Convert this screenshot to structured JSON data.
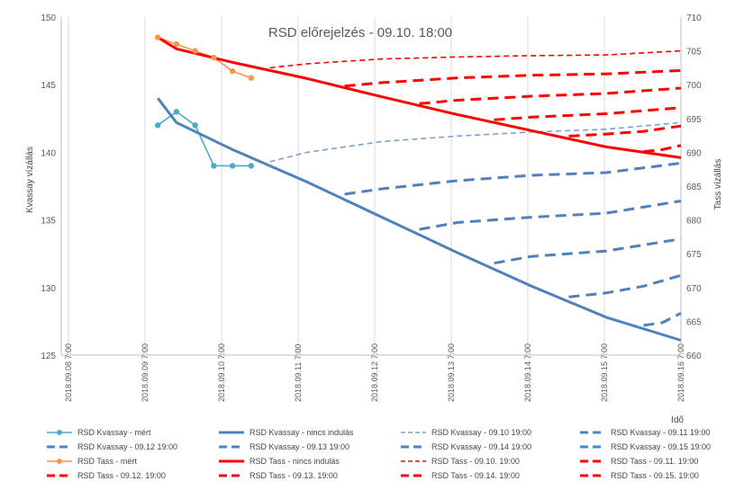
{
  "colors": {
    "kvassay": "#4f81bd",
    "kvassay_dashed_light": "#7aa0cf",
    "kvassay_measured": "#4bacc6",
    "tass": "#ff0000",
    "tass_measured": "#f79646",
    "grid": "#d9d9d9"
  },
  "chart_data": {
    "type": "line",
    "title": "RSD előrejelzés - 09.10. 18:00",
    "ylabel": "Kvassay vízállás",
    "y2label": "Tass vízállás",
    "xlabel": "Idő",
    "ylim": [
      125,
      150
    ],
    "y2lim": [
      660,
      710
    ],
    "yticks": [
      125,
      130,
      135,
      140,
      145,
      150
    ],
    "y2ticks": [
      660,
      665,
      670,
      675,
      680,
      685,
      690,
      695,
      700,
      705,
      710
    ],
    "xlim": [
      "2018-09-08T00:00",
      "2018-09-16T07:00"
    ],
    "x_tick_labels": [
      "2018.09.08 7:00",
      "2018.09.09 7:00",
      "2018.09.10 7:00",
      "2018.09.11 7:00",
      "2018.09.12 7:00",
      "2018.09.13 7:00",
      "2018.09.14 7:00",
      "2018.09.15 7:00",
      "2018.09.16 7:00"
    ],
    "grid": "vertical",
    "legend_position": "bottom",
    "series": [
      {
        "name": "RSD Kvassay - mért",
        "axis": "left",
        "style": "line-marker",
        "color": "#4bacc6",
        "x": [
          "2018-09-09T07:00",
          "2018-09-09T13:00",
          "2018-09-09T19:00",
          "2018-09-10T01:00",
          "2018-09-10T07:00",
          "2018-09-10T13:00"
        ],
        "y": [
          142,
          143,
          142,
          139,
          139,
          139
        ]
      },
      {
        "name": "RSD Kvassay - nincs indulás",
        "axis": "left",
        "style": "solid-thick",
        "color": "#4f81bd",
        "x": [
          "2018-09-09T07:00",
          "2018-09-09T13:00",
          "2018-09-10T07:00",
          "2018-09-11T07:00",
          "2018-09-12T07:00",
          "2018-09-13T07:00",
          "2018-09-14T07:00",
          "2018-09-15T07:00",
          "2018-09-16T07:00"
        ],
        "y": [
          144,
          142.2,
          140.2,
          137.8,
          135.2,
          132.6,
          130.1,
          127.8,
          126.1
        ]
      },
      {
        "name": "RSD Kvassay - 09.10 19:00",
        "axis": "left",
        "style": "dash-thin",
        "color": "#7aa0cf",
        "x": [
          "2018-09-10T19:00",
          "2018-09-11T07:00",
          "2018-09-12T07:00",
          "2018-09-13T07:00",
          "2018-09-14T07:00",
          "2018-09-15T07:00",
          "2018-09-16T07:00"
        ],
        "y": [
          139.3,
          140,
          140.8,
          141.2,
          141.5,
          141.7,
          142.2
        ]
      },
      {
        "name": "RSD Kvassay - 09.11 19:00",
        "axis": "left",
        "style": "dash-thick",
        "color": "#4f81bd",
        "x": [
          "2018-09-11T19:00",
          "2018-09-12T07:00",
          "2018-09-13T07:00",
          "2018-09-14T07:00",
          "2018-09-15T07:00",
          "2018-09-16T07:00"
        ],
        "y": [
          136.9,
          137.3,
          137.9,
          138.3,
          138.5,
          139.2
        ]
      },
      {
        "name": "RSD Kvassay - 09.12 19:00",
        "axis": "left",
        "style": "dash-thick",
        "color": "#4f81bd",
        "x": [
          "2018-09-12T19:00",
          "2018-09-13T07:00",
          "2018-09-14T07:00",
          "2018-09-15T07:00",
          "2018-09-16T07:00"
        ],
        "y": [
          134.3,
          134.8,
          135.2,
          135.5,
          136.4
        ]
      },
      {
        "name": "RSD Kvassay - 09.13 19:00",
        "axis": "left",
        "style": "dash-thick",
        "color": "#4f81bd",
        "x": [
          "2018-09-13T19:00",
          "2018-09-14T07:00",
          "2018-09-15T07:00",
          "2018-09-16T07:00"
        ],
        "y": [
          131.8,
          132.3,
          132.7,
          133.6
        ]
      },
      {
        "name": "RSD Kvassay - 09.14 19:00",
        "axis": "left",
        "style": "dash-thick",
        "color": "#4f81bd",
        "x": [
          "2018-09-14T19:00",
          "2018-09-15T07:00",
          "2018-09-15T19:00",
          "2018-09-16T07:00"
        ],
        "y": [
          129.3,
          129.6,
          130.1,
          130.9
        ]
      },
      {
        "name": "RSD Kvassay - 09.15 19:00",
        "axis": "left",
        "style": "dash-thick",
        "color": "#4f81bd",
        "x": [
          "2018-09-15T19:00",
          "2018-09-16T01:00",
          "2018-09-16T07:00"
        ],
        "y": [
          127.2,
          127.4,
          128.1
        ]
      },
      {
        "name": "RSD Tass - mért",
        "axis": "right",
        "style": "line-marker",
        "color": "#f79646",
        "x": [
          "2018-09-09T07:00",
          "2018-09-09T13:00",
          "2018-09-09T19:00",
          "2018-09-10T01:00",
          "2018-09-10T07:00",
          "2018-09-10T13:00"
        ],
        "y": [
          707,
          706,
          705,
          704,
          702,
          701
        ]
      },
      {
        "name": "RSD Tass - nincs indulás",
        "axis": "right",
        "style": "solid-thick",
        "color": "#ff0000",
        "x": [
          "2018-09-09T07:00",
          "2018-09-09T13:00",
          "2018-09-10T07:00",
          "2018-09-11T07:00",
          "2018-09-12T07:00",
          "2018-09-13T07:00",
          "2018-09-14T07:00",
          "2018-09-15T07:00",
          "2018-09-16T07:00"
        ],
        "y": [
          707,
          705.3,
          703.3,
          700.9,
          698.2,
          695.6,
          693.2,
          690.8,
          689.2
        ]
      },
      {
        "name": "RSD Tass - 09.10. 19:00",
        "axis": "right",
        "style": "dash-thin",
        "color": "#ff0000",
        "x": [
          "2018-09-10T19:00",
          "2018-09-11T07:00",
          "2018-09-12T07:00",
          "2018-09-13T07:00",
          "2018-09-14T07:00",
          "2018-09-15T07:00",
          "2018-09-16T07:00"
        ],
        "y": [
          702.5,
          703.1,
          703.8,
          704.1,
          704.3,
          704.4,
          705
        ]
      },
      {
        "name": "RSD Tass - 09.11. 19:00",
        "axis": "right",
        "style": "dash-thick",
        "color": "#ff0000",
        "x": [
          "2018-09-11T19:00",
          "2018-09-12T07:00",
          "2018-09-13T07:00",
          "2018-09-14T07:00",
          "2018-09-15T07:00",
          "2018-09-16T07:00"
        ],
        "y": [
          699.8,
          700.3,
          701,
          701.4,
          701.6,
          702.1
        ]
      },
      {
        "name": "RSD Tass - 09.12. 19:00",
        "axis": "right",
        "style": "dash-thick",
        "color": "#ff0000",
        "x": [
          "2018-09-12T19:00",
          "2018-09-13T07:00",
          "2018-09-14T07:00",
          "2018-09-15T07:00",
          "2018-09-16T07:00"
        ],
        "y": [
          697.2,
          697.7,
          698.3,
          698.7,
          699.5
        ]
      },
      {
        "name": "RSD Tass - 09.13. 19:00",
        "axis": "right",
        "style": "dash-thick",
        "color": "#ff0000",
        "x": [
          "2018-09-13T19:00",
          "2018-09-14T07:00",
          "2018-09-15T07:00",
          "2018-09-16T07:00"
        ],
        "y": [
          694.8,
          695.2,
          695.7,
          696.6
        ]
      },
      {
        "name": "RSD Tass - 09.14. 19:00",
        "axis": "right",
        "style": "dash-thick",
        "color": "#ff0000",
        "x": [
          "2018-09-14T19:00",
          "2018-09-15T07:00",
          "2018-09-15T19:00",
          "2018-09-16T07:00"
        ],
        "y": [
          692.4,
          692.7,
          693.1,
          693.9
        ]
      },
      {
        "name": "RSD Tass - 09.15. 19:00",
        "axis": "right",
        "style": "dash-thick",
        "color": "#ff0000",
        "x": [
          "2018-09-15T19:00",
          "2018-09-16T01:00",
          "2018-09-16T07:00"
        ],
        "y": [
          690.1,
          690.4,
          691
        ]
      }
    ]
  }
}
